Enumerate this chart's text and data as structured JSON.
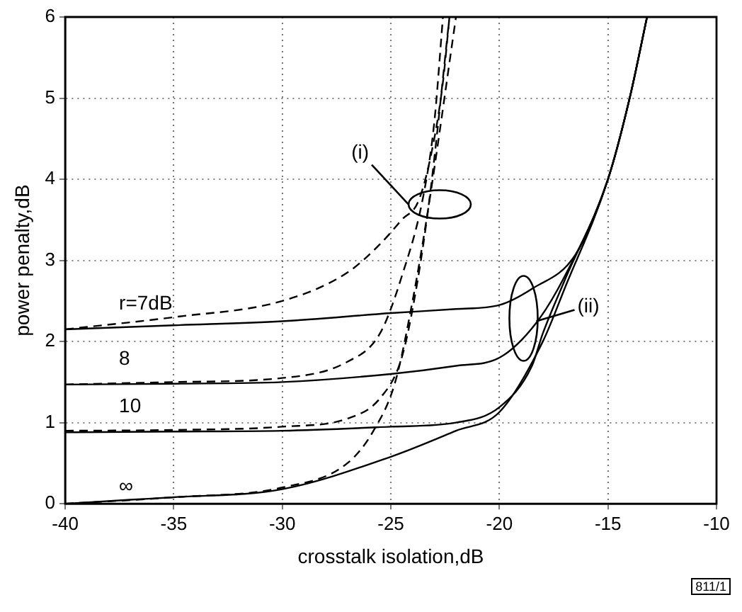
{
  "chart_data": {
    "type": "line",
    "xlabel": "crosstalk isolation,dB",
    "ylabel": "power penalty,dB",
    "xlim": [
      -40,
      -10
    ],
    "xticks": [
      -40,
      -35,
      -30,
      -25,
      -20,
      -15,
      -10
    ],
    "ylim": [
      0,
      6
    ],
    "yticks": [
      0,
      1,
      2,
      3,
      4,
      5,
      6
    ],
    "grid": true,
    "legend": false,
    "marker": "none",
    "series": [
      {
        "color": "#000000",
        "line_style": "solid",
        "x": [
          -40,
          -35,
          -30,
          -25,
          -22,
          -20,
          -18.5,
          -16.5,
          -15,
          -14,
          -13.2
        ],
        "values": [
          2.15,
          2.2,
          2.25,
          2.35,
          2.4,
          2.45,
          2.65,
          3.07,
          4.0,
          5.0,
          6.0
        ]
      },
      {
        "color": "#000000",
        "line_style": "solid",
        "x": [
          -40,
          -35,
          -30,
          -25,
          -22,
          -20,
          -18.3,
          -17,
          -15,
          -14,
          -13.2
        ],
        "values": [
          1.47,
          1.48,
          1.5,
          1.6,
          1.7,
          1.8,
          2.23,
          2.8,
          4.0,
          5.0,
          6.0
        ]
      },
      {
        "color": "#000000",
        "line_style": "solid",
        "x": [
          -40,
          -35,
          -30,
          -25,
          -22,
          -20,
          -18.5,
          -18,
          -17,
          -15,
          -14,
          -13.2
        ],
        "values": [
          0.88,
          0.89,
          0.9,
          0.95,
          1.0,
          1.19,
          1.7,
          2.1,
          2.75,
          4.0,
          5.0,
          6.0
        ]
      },
      {
        "color": "#000000",
        "line_style": "solid",
        "x": [
          -40,
          -37,
          -35,
          -30,
          -25,
          -22,
          -20,
          -18,
          -17,
          -15,
          -14,
          -13.2
        ],
        "values": [
          0,
          0.05,
          0.08,
          0.18,
          0.58,
          0.9,
          1.13,
          2.0,
          2.65,
          4.0,
          5.0,
          6.0
        ]
      },
      {
        "color": "#000000",
        "line_style": "dashed",
        "x": [
          -40,
          -35,
          -30,
          -27,
          -25.5,
          -24.5,
          -23.7,
          -23,
          -22.6,
          -22.3
        ],
        "values": [
          2.15,
          2.3,
          2.5,
          2.85,
          3.2,
          3.5,
          3.75,
          4.5,
          5.2,
          6.0
        ]
      },
      {
        "color": "#000000",
        "line_style": "dashed",
        "x": [
          -40,
          -35,
          -30,
          -27,
          -25.5,
          -24.5,
          -23.5,
          -23,
          -22.6
        ],
        "values": [
          1.47,
          1.5,
          1.55,
          1.75,
          2.1,
          2.8,
          3.8,
          4.7,
          6.0
        ]
      },
      {
        "color": "#000000",
        "line_style": "dashed",
        "x": [
          -40,
          -35,
          -30,
          -27,
          -25.5,
          -24.5,
          -23.8,
          -23.2,
          -22.3
        ],
        "values": [
          0.9,
          0.91,
          0.95,
          1.05,
          1.3,
          1.8,
          2.7,
          3.8,
          6.0
        ]
      },
      {
        "color": "#000000",
        "line_style": "dashed",
        "x": [
          -40,
          -35,
          -30,
          -27,
          -25.8,
          -24.8,
          -24,
          -23.3,
          -22
        ],
        "values": [
          0,
          0.08,
          0.2,
          0.5,
          0.9,
          1.5,
          2.5,
          3.6,
          6.0
        ]
      }
    ],
    "annotations": [
      "r=7dB",
      "8",
      "10",
      "∞",
      "(i)",
      {
        "text": "(ii)",
        "x": -18.3,
        "y": 2.25
      },
      "811/1"
    ]
  }
}
